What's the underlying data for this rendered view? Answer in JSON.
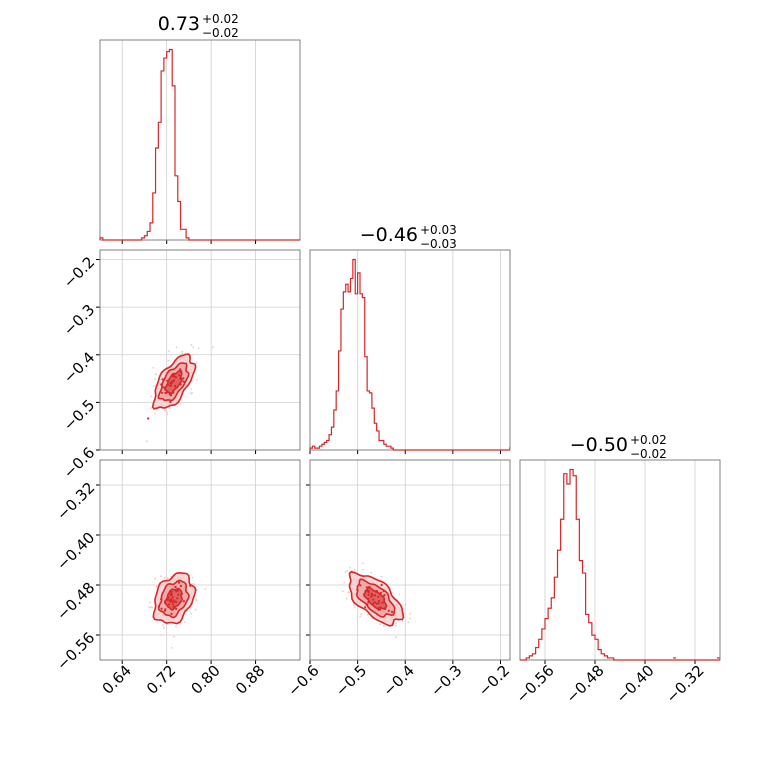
{
  "colors": {
    "accent": "#d62728",
    "fill_light": "#f4c7c7",
    "fill_mid": "#e88c8c",
    "grid": "#cfcfcf",
    "frame": "#808080"
  },
  "chart_data": [
    {
      "type": "histogram",
      "panel": "p00",
      "title": {
        "value": "0.73",
        "plus": "+0.02",
        "minus": "−0.02"
      },
      "xlim": [
        0.6,
        0.96
      ],
      "bins": [
        0.6,
        0.605,
        0.61,
        0.615,
        0.62,
        0.625,
        0.63,
        0.635,
        0.64,
        0.645,
        0.65,
        0.655,
        0.66,
        0.665,
        0.67,
        0.675,
        0.68,
        0.685,
        0.69,
        0.695,
        0.7,
        0.705,
        0.71,
        0.715,
        0.72,
        0.725,
        0.73,
        0.735,
        0.74,
        0.745,
        0.75,
        0.755,
        0.76,
        0.765,
        0.77,
        0.775
      ],
      "counts": [
        1,
        0,
        0,
        0,
        0,
        0,
        0,
        0,
        0,
        0,
        0,
        0,
        0,
        0,
        0,
        1,
        2,
        4,
        8,
        22,
        43,
        55,
        79,
        85,
        88,
        89,
        72,
        30,
        18,
        5,
        5,
        1,
        0,
        0,
        0
      ]
    },
    {
      "type": "histogram",
      "panel": "p11",
      "title": {
        "value": "−0.46",
        "plus": "+0.03",
        "minus": "−0.03"
      },
      "xlim": [
        -0.6,
        -0.18
      ],
      "bins": [
        -0.6,
        -0.595,
        -0.59,
        -0.585,
        -0.58,
        -0.575,
        -0.57,
        -0.565,
        -0.56,
        -0.555,
        -0.55,
        -0.545,
        -0.54,
        -0.535,
        -0.53,
        -0.525,
        -0.52,
        -0.515,
        -0.51,
        -0.505,
        -0.5,
        -0.495,
        -0.49,
        -0.485,
        -0.48,
        -0.475,
        -0.47,
        -0.465,
        -0.46,
        -0.455,
        -0.45,
        -0.445,
        -0.44,
        -0.435,
        -0.43,
        -0.425,
        -0.42,
        -0.415,
        -0.41,
        -0.405,
        -0.4,
        -0.395,
        -0.39,
        -0.385,
        -0.38,
        -0.375,
        -0.37
      ],
      "counts": [
        1,
        2,
        1,
        1,
        2,
        3,
        4,
        5,
        8,
        12,
        21,
        31,
        52,
        74,
        83,
        87,
        83,
        90,
        100,
        82,
        93,
        82,
        80,
        49,
        31,
        30,
        22,
        14,
        10,
        5,
        5,
        3,
        2,
        2,
        1,
        0,
        0,
        0,
        0,
        0,
        0,
        0,
        0,
        0,
        0,
        0
      ],
      "extra_tail": [
        {
          "x": -0.182,
          "count": 1
        }
      ]
    },
    {
      "type": "histogram",
      "panel": "p22",
      "title": {
        "value": "−0.50",
        "plus": "+0.02",
        "minus": "−0.02"
      },
      "xlim": [
        -0.6,
        -0.28
      ],
      "bins": [
        -0.59,
        -0.585,
        -0.58,
        -0.575,
        -0.57,
        -0.565,
        -0.56,
        -0.555,
        -0.55,
        -0.545,
        -0.54,
        -0.535,
        -0.53,
        -0.525,
        -0.52,
        -0.515,
        -0.51,
        -0.505,
        -0.5,
        -0.495,
        -0.49,
        -0.485,
        -0.48,
        -0.475,
        -0.47,
        -0.465,
        -0.46,
        -0.455,
        -0.45
      ],
      "counts": [
        1,
        2,
        3,
        6,
        10,
        15,
        20,
        25,
        30,
        40,
        53,
        68,
        90,
        85,
        92,
        89,
        68,
        48,
        42,
        22,
        18,
        12,
        10,
        5,
        3,
        2,
        1,
        1
      ],
      "extra_tail": [
        {
          "x": -0.355,
          "count": 1
        },
        {
          "x": -0.285,
          "count": 1
        }
      ]
    },
    {
      "type": "scatter-contour",
      "panel": "p10",
      "xlim": [
        0.6,
        0.96
      ],
      "ylim": [
        -0.6,
        -0.18
      ],
      "center": [
        0.733,
        -0.458
      ],
      "sigma": [
        0.018,
        0.028
      ],
      "rho": 0.6
    },
    {
      "type": "scatter-contour",
      "panel": "p20",
      "xlim": [
        0.6,
        0.96
      ],
      "ylim": [
        -0.6,
        -0.28
      ],
      "center": [
        0.733,
        -0.502
      ],
      "sigma": [
        0.018,
        0.02
      ],
      "rho": 0.3
    },
    {
      "type": "scatter-contour",
      "panel": "p21",
      "xlim": [
        -0.6,
        -0.18
      ],
      "ylim": [
        -0.6,
        -0.28
      ],
      "center": [
        -0.463,
        -0.502
      ],
      "sigma": [
        0.028,
        0.02
      ],
      "rho": -0.6
    }
  ],
  "axes": {
    "x0": {
      "ticks": [
        0.64,
        0.72,
        0.8,
        0.88
      ],
      "labels": [
        "0.64",
        "0.72",
        "0.80",
        "0.88"
      ]
    },
    "x1": {
      "ticks": [
        -0.6,
        -0.5,
        -0.4,
        -0.3,
        -0.2
      ],
      "labels": [
        "−0.6",
        "−0.5",
        "−0.4",
        "−0.3",
        "−0.2"
      ]
    },
    "x2": {
      "ticks": [
        -0.56,
        -0.48,
        -0.4,
        -0.32
      ],
      "labels": [
        "−0.56",
        "−0.48",
        "−0.40",
        "−0.32"
      ]
    },
    "y1": {
      "ticks": [
        -0.2,
        -0.3,
        -0.4,
        -0.5,
        -0.6
      ],
      "labels": [
        "−0.2",
        "−0.3",
        "−0.4",
        "−0.5",
        "−0.6"
      ]
    },
    "y2": {
      "ticks": [
        -0.32,
        -0.4,
        -0.48,
        -0.56
      ],
      "labels": [
        "−0.32",
        "−0.40",
        "−0.48",
        "−0.56"
      ]
    }
  }
}
